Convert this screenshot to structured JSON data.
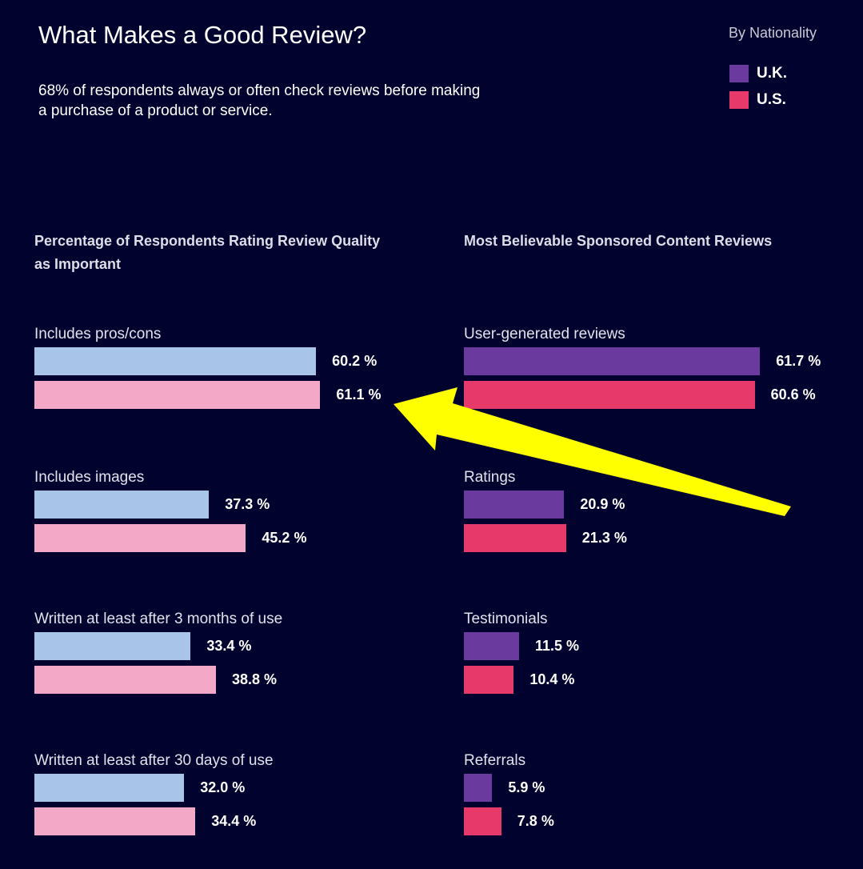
{
  "header": {
    "title": "What Makes a Good Review?",
    "subtitle": "68% of respondents always or often check reviews before making a purchase of a product or service."
  },
  "legend": {
    "title": "By Nationality",
    "items": [
      {
        "label": "U.K.",
        "color": "#6a3a9e"
      },
      {
        "label": "U.S.",
        "color": "#e83a6a"
      }
    ]
  },
  "chart_data": [
    {
      "type": "bar",
      "orientation": "horizontal",
      "title": "Percentage of Respondents Rating Review Quality as Important",
      "categories": [
        "Includes pros/cons",
        "Includes images",
        "Written at least after 3 months of use",
        "Written at least after 30 days of use"
      ],
      "series": [
        {
          "name": "U.K.",
          "values": [
            60.2,
            37.3,
            33.4,
            32.0
          ],
          "labels": [
            "60.2 %",
            "37.3 %",
            "33.4 %",
            "32.0 %"
          ],
          "color": "#a8c4e8"
        },
        {
          "name": "U.S.",
          "values": [
            61.1,
            45.2,
            38.8,
            34.4
          ],
          "labels": [
            "61.1 %",
            "45.2 %",
            "38.8 %",
            "34.4 %"
          ],
          "color": "#f4a8c8"
        }
      ],
      "xlim": [
        0,
        100
      ]
    },
    {
      "type": "bar",
      "orientation": "horizontal",
      "title": "Most Believable Sponsored Content Reviews",
      "categories": [
        "User-generated reviews",
        "Ratings",
        "Testimonials",
        "Referrals"
      ],
      "series": [
        {
          "name": "U.K.",
          "values": [
            61.7,
            20.9,
            11.5,
            5.9
          ],
          "labels": [
            "61.7 %",
            "20.9 %",
            "11.5 %",
            "5.9 %"
          ],
          "color": "#6a3a9e"
        },
        {
          "name": "U.S.",
          "values": [
            60.6,
            21.3,
            10.4,
            7.8
          ],
          "labels": [
            "60.6 %",
            "21.3 %",
            "10.4 %",
            "7.8 %"
          ],
          "color": "#e83a6a"
        }
      ],
      "xlim": [
        0,
        100
      ]
    }
  ],
  "annotation": {
    "type": "arrow",
    "color": "#ffff00",
    "target": "61.1 %"
  }
}
